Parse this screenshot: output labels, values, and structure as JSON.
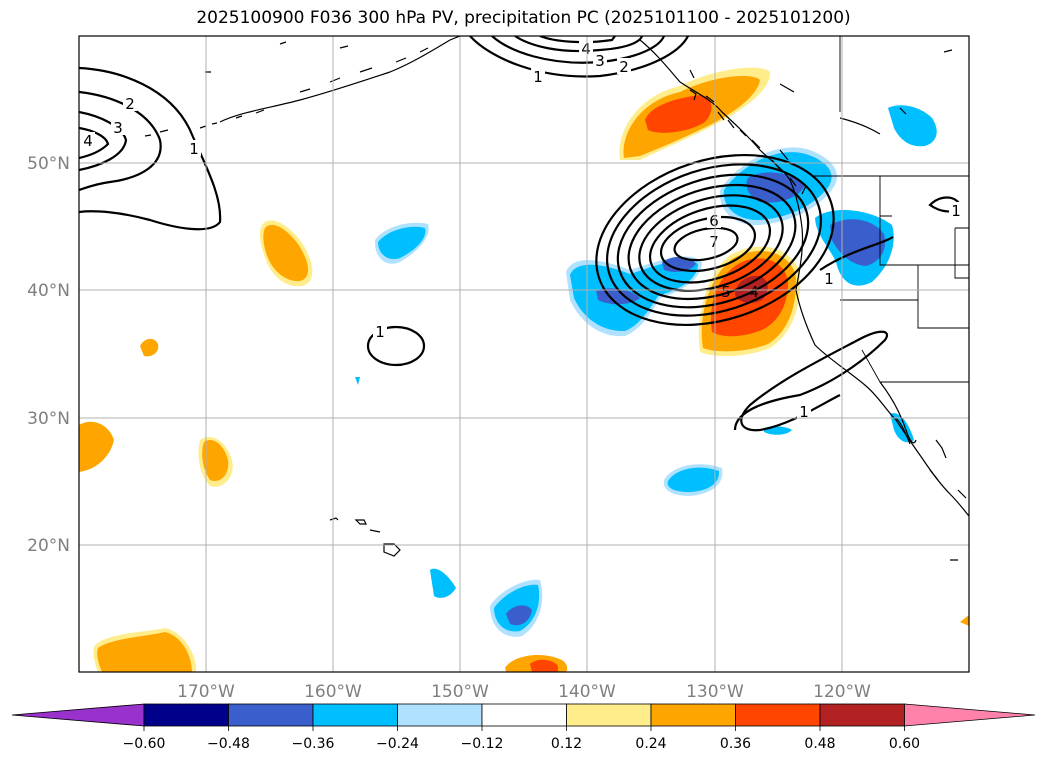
{
  "title": "2025100900 F036 300 hPa PV, precipitation PC (2025101100 - 2025101200)",
  "map": {
    "projection": "lat-lon",
    "lon_range": [
      -180,
      -110
    ],
    "lat_range": [
      10,
      60
    ],
    "lat_labels": [
      "50°N",
      "40°N",
      "30°N",
      "20°N"
    ],
    "lon_labels": [
      "170°W",
      "160°W",
      "150°W",
      "140°W",
      "130°W",
      "120°W"
    ]
  },
  "pv_contours": {
    "unit": "PVU",
    "labels_visible": [
      "1",
      "2",
      "3",
      "4",
      "5",
      "6",
      "7"
    ]
  },
  "colorbar": {
    "ticks": [
      "−0.60",
      "−0.48",
      "−0.36",
      "−0.24",
      "−0.12",
      "0.12",
      "0.24",
      "0.36",
      "0.48",
      "0.60"
    ],
    "colors": [
      "#9932cc",
      "#00008b",
      "#3a5fcd",
      "#00bfff",
      "#b0e2ff",
      "#ffffff",
      "#ffec8b",
      "#ffa500",
      "#ff4500",
      "#b22222",
      "#ff82ab"
    ]
  }
}
